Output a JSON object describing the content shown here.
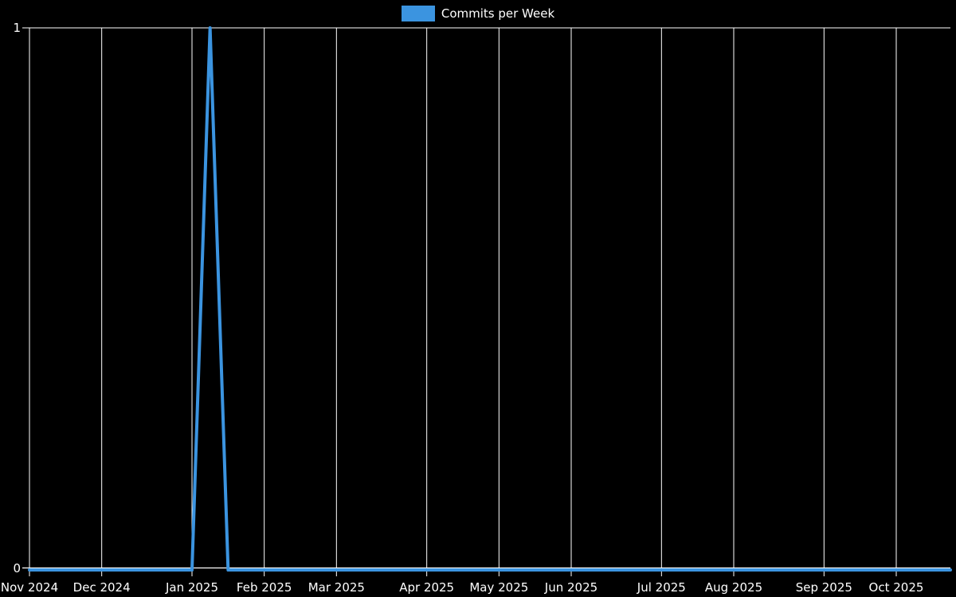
{
  "app": {
    "background": "#000000",
    "text_color": "#ffffff"
  },
  "legend": {
    "label": "Commits per Week",
    "swatch_color": "#3b94e0"
  },
  "chart_data": {
    "type": "line",
    "title": "",
    "xlabel": "",
    "ylabel": "",
    "legend_position": "top-center",
    "x": {
      "unit": "weeks",
      "num_points": 52,
      "tick_labels": [
        "Nov 2024",
        "Dec 2024",
        "Jan 2025",
        "Feb 2025",
        "Mar 2025",
        "Apr 2025",
        "May 2025",
        "Jun 2025",
        "Jul 2025",
        "Aug 2025",
        "Sep 2025",
        "Oct 2025"
      ],
      "tick_point_indices": [
        0,
        4,
        9,
        13,
        17,
        22,
        26,
        30,
        35,
        39,
        44,
        48
      ]
    },
    "y": {
      "tick_labels": [
        "0",
        "1"
      ],
      "range": [
        0,
        1
      ]
    },
    "grid": {
      "color": "#ffffff",
      "show_vertical": true,
      "show_top_line": true,
      "show_baseline": true
    },
    "series": [
      {
        "name": "Commits per Week",
        "color": "#3b94e0",
        "values": [
          0,
          0,
          0,
          0,
          0,
          0,
          0,
          0,
          0,
          0,
          1,
          0,
          0,
          0,
          0,
          0,
          0,
          0,
          0,
          0,
          0,
          0,
          0,
          0,
          0,
          0,
          0,
          0,
          0,
          0,
          0,
          0,
          0,
          0,
          0,
          0,
          0,
          0,
          0,
          0,
          0,
          0,
          0,
          0,
          0,
          0,
          0,
          0,
          0,
          0,
          0,
          0
        ]
      }
    ]
  }
}
